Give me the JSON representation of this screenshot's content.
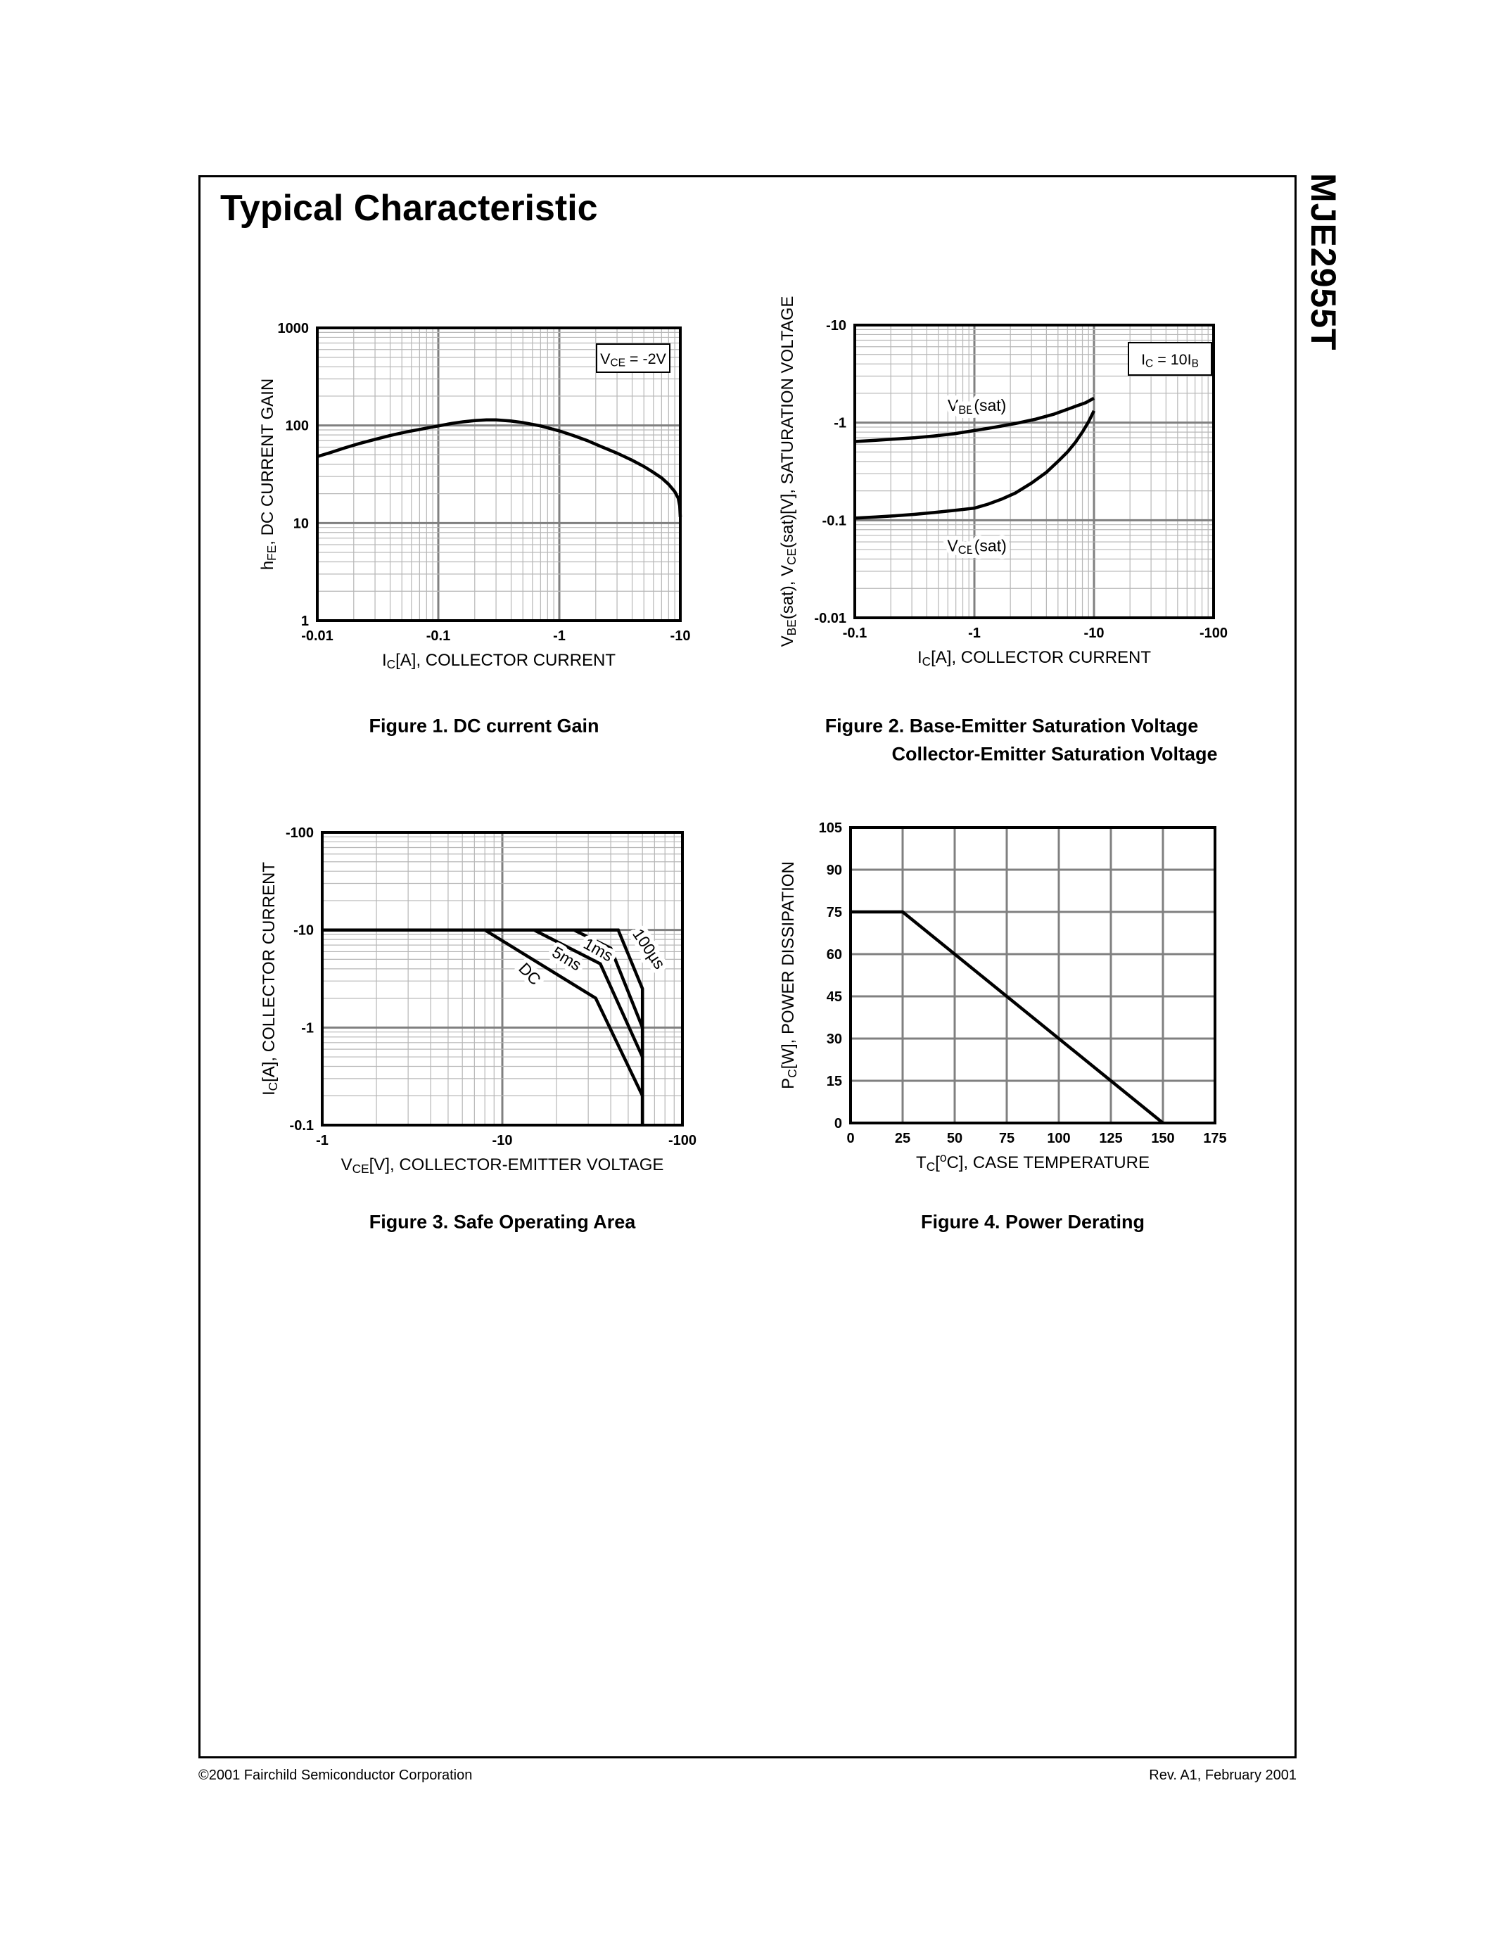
{
  "page": {
    "title": "Typical Characteristic",
    "side_label": "MJE2955T",
    "footer_left": "©2001 Fairchild Semiconductor Corporation",
    "footer_right": "Rev. A1, February 2001"
  },
  "chart_data": [
    {
      "id": "figure-1",
      "type": "line",
      "caption": "Figure 1. DC current Gain",
      "x_axis": {
        "scale": "log",
        "range": [
          -0.01,
          -10
        ],
        "ticks": [
          {
            "v": -0.01,
            "l": "-0.01"
          },
          {
            "v": -0.1,
            "l": "-0.1"
          },
          {
            "v": -1,
            "l": "-1"
          },
          {
            "v": -10,
            "l": "-10"
          }
        ],
        "title": [
          {
            "t": "I"
          },
          {
            "t": "C",
            "m": "sub"
          },
          {
            "t": "[A], COLLECTOR CURRENT"
          }
        ]
      },
      "y_axis": {
        "scale": "log",
        "range": [
          1,
          1000
        ],
        "ticks": [
          {
            "v": 1000,
            "l": "1000"
          },
          {
            "v": 100,
            "l": "100"
          },
          {
            "v": 10,
            "l": "10"
          },
          {
            "v": 1,
            "l": "1"
          }
        ],
        "title": [
          {
            "t": "h"
          },
          {
            "t": "FE",
            "m": "sub"
          },
          {
            "t": ", DC CURRENT GAIN"
          }
        ]
      },
      "annotations": [
        {
          "box": {
            "x": 848,
            "y": 489,
            "w": 104,
            "h": 40
          },
          "segments": [
            {
              "t": "V"
            },
            {
              "t": "CE",
              "m": "sub"
            },
            {
              "t": " = -2V"
            }
          ]
        }
      ],
      "labels": [],
      "series": [
        {
          "name": "hFE",
          "points": [
            [
              -0.01,
              48
            ],
            [
              -0.013,
              53
            ],
            [
              -0.017,
              59
            ],
            [
              -0.022,
              65
            ],
            [
              -0.03,
              72
            ],
            [
              -0.04,
              79
            ],
            [
              -0.055,
              86
            ],
            [
              -0.07,
              91
            ],
            [
              -0.1,
              99
            ],
            [
              -0.13,
              105
            ],
            [
              -0.16,
              109
            ],
            [
              -0.2,
              112
            ],
            [
              -0.25,
              114
            ],
            [
              -0.3,
              114
            ],
            [
              -0.4,
              111
            ],
            [
              -0.5,
              107
            ],
            [
              -0.7,
              99
            ],
            [
              -1,
              88
            ],
            [
              -1.3,
              79
            ],
            [
              -1.7,
              70
            ],
            [
              -2.2,
              61
            ],
            [
              -3,
              52
            ],
            [
              -4,
              44
            ],
            [
              -5,
              38
            ],
            [
              -6,
              33
            ],
            [
              -7,
              29
            ],
            [
              -8,
              25
            ],
            [
              -9,
              21
            ],
            [
              -9.6,
              18
            ],
            [
              -9.9,
              15
            ],
            [
              -10,
              11.5
            ]
          ]
        }
      ]
    },
    {
      "id": "figure-2",
      "type": "line",
      "caption": "Figure 2. Base-Emitter Saturation Voltage",
      "caption2": "Collector-Emitter Saturation Voltage",
      "x_axis": {
        "scale": "log",
        "range": [
          -0.1,
          -100
        ],
        "ticks": [
          {
            "v": -0.1,
            "l": "-0.1"
          },
          {
            "v": -1,
            "l": "-1"
          },
          {
            "v": -10,
            "l": "-10"
          },
          {
            "v": -100,
            "l": "-100"
          }
        ],
        "title": [
          {
            "t": "I"
          },
          {
            "t": "C",
            "m": "sub"
          },
          {
            "t": "[A], COLLECTOR CURRENT"
          }
        ]
      },
      "y_axis": {
        "scale": "log",
        "range": [
          -0.01,
          -10
        ],
        "ticks": [
          {
            "v": -10,
            "l": "-10"
          },
          {
            "v": -1,
            "l": "-1"
          },
          {
            "v": -0.1,
            "l": "-0.1"
          },
          {
            "v": -0.01,
            "l": "-0.01"
          }
        ],
        "title": [
          {
            "t": "V"
          },
          {
            "t": "BE",
            "m": "sub"
          },
          {
            "t": "(sat), V"
          },
          {
            "t": "CE",
            "m": "sub"
          },
          {
            "t": "(sat)[V], SATURATION VOLTAGE"
          }
        ]
      },
      "annotations": [
        {
          "box": {
            "x": 1604,
            "y": 487,
            "w": 118,
            "h": 46
          },
          "segments": [
            {
              "t": "I"
            },
            {
              "t": "C",
              "m": "sub"
            },
            {
              "t": " = 10I"
            },
            {
              "t": "B",
              "m": "sub"
            }
          ]
        }
      ],
      "labels": [
        {
          "segments": [
            {
              "t": "V"
            },
            {
              "t": "BE",
              "m": "sub"
            },
            {
              "t": "(sat)"
            }
          ],
          "x": -1.05,
          "y": -1.5,
          "rotate": 0
        },
        {
          "segments": [
            {
              "t": "V"
            },
            {
              "t": "CE",
              "m": "sub"
            },
            {
              "t": "(sat)"
            }
          ],
          "x": -1.05,
          "y": -0.055,
          "rotate": 0
        }
      ],
      "series": [
        {
          "name": "VBE(sat)",
          "points": [
            [
              -0.1,
              -0.64
            ],
            [
              -0.15,
              -0.66
            ],
            [
              -0.22,
              -0.68
            ],
            [
              -0.32,
              -0.7
            ],
            [
              -0.46,
              -0.73
            ],
            [
              -0.68,
              -0.77
            ],
            [
              -1,
              -0.83
            ],
            [
              -1.5,
              -0.9
            ],
            [
              -2.2,
              -0.98
            ],
            [
              -3.2,
              -1.08
            ],
            [
              -4.6,
              -1.22
            ],
            [
              -6.8,
              -1.45
            ],
            [
              -8.5,
              -1.6
            ],
            [
              -10,
              -1.78
            ]
          ]
        },
        {
          "name": "VCE(sat)",
          "points": [
            [
              -0.1,
              -0.105
            ],
            [
              -0.15,
              -0.108
            ],
            [
              -0.22,
              -0.111
            ],
            [
              -0.32,
              -0.115
            ],
            [
              -0.46,
              -0.12
            ],
            [
              -0.68,
              -0.126
            ],
            [
              -1,
              -0.133
            ],
            [
              -1.3,
              -0.146
            ],
            [
              -1.7,
              -0.165
            ],
            [
              -2.2,
              -0.19
            ],
            [
              -3,
              -0.24
            ],
            [
              -4,
              -0.31
            ],
            [
              -5,
              -0.4
            ],
            [
              -6,
              -0.5
            ],
            [
              -7,
              -0.63
            ],
            [
              -8,
              -0.8
            ],
            [
              -9,
              -1.02
            ],
            [
              -10,
              -1.32
            ]
          ]
        }
      ]
    },
    {
      "id": "figure-3",
      "type": "line",
      "caption": "Figure 3. Safe Operating Area",
      "x_axis": {
        "scale": "log",
        "range": [
          -1,
          -100
        ],
        "ticks": [
          {
            "v": -1,
            "l": "-1"
          },
          {
            "v": -10,
            "l": "-10"
          },
          {
            "v": -100,
            "l": "-100"
          }
        ],
        "title": [
          {
            "t": "V"
          },
          {
            "t": "CE",
            "m": "sub"
          },
          {
            "t": "[V], COLLECTOR-EMITTER VOLTAGE"
          }
        ]
      },
      "y_axis": {
        "scale": "log",
        "range": [
          -0.1,
          -100
        ],
        "ticks": [
          {
            "v": -100,
            "l": "-100"
          },
          {
            "v": -10,
            "l": "-10"
          },
          {
            "v": -1,
            "l": "-1"
          },
          {
            "v": -0.1,
            "l": "-0.1"
          }
        ],
        "title": [
          {
            "t": "I"
          },
          {
            "t": "C",
            "m": "sub"
          },
          {
            "t": "[A], COLLECTOR CURRENT"
          }
        ]
      },
      "annotations": [],
      "labels": [
        {
          "segments": [
            {
              "t": "DC"
            }
          ],
          "x": -13.5,
          "y": -3.7,
          "rotate": 46
        },
        {
          "segments": [
            {
              "t": "5ms"
            }
          ],
          "x": -22,
          "y": -5.2,
          "rotate": 31
        },
        {
          "segments": [
            {
              "t": "1ms"
            }
          ],
          "x": -33,
          "y": -6.4,
          "rotate": 29
        },
        {
          "segments": [
            {
              "t": "100µs"
            }
          ],
          "x": -61.5,
          "y": -6.8,
          "rotate": 56
        }
      ],
      "series": [
        {
          "name": "DC",
          "points": [
            [
              -1,
              -10
            ],
            [
              -8,
              -10
            ],
            [
              -33,
              -2
            ],
            [
              -60,
              -0.2
            ],
            [
              -60,
              -0.1
            ]
          ]
        },
        {
          "name": "5ms",
          "points": [
            [
              -1,
              -10
            ],
            [
              -15,
              -10
            ],
            [
              -35,
              -4.5
            ],
            [
              -60,
              -0.5
            ],
            [
              -60,
              -0.1
            ]
          ]
        },
        {
          "name": "1ms",
          "points": [
            [
              -1,
              -10
            ],
            [
              -25,
              -10
            ],
            [
              -40,
              -6.5
            ],
            [
              -60,
              -1
            ],
            [
              -60,
              -0.1
            ]
          ]
        },
        {
          "name": "100µs",
          "points": [
            [
              -1,
              -10
            ],
            [
              -44,
              -10
            ],
            [
              -60,
              -2.5
            ],
            [
              -60,
              -0.1
            ]
          ]
        }
      ]
    },
    {
      "id": "figure-4",
      "type": "line",
      "caption": "Figure 4. Power Derating",
      "x_axis": {
        "scale": "linear",
        "range": [
          0,
          175
        ],
        "tick_step": 25,
        "ticks": [
          {
            "v": 0,
            "l": "0"
          },
          {
            "v": 25,
            "l": "25"
          },
          {
            "v": 50,
            "l": "50"
          },
          {
            "v": 75,
            "l": "75"
          },
          {
            "v": 100,
            "l": "100"
          },
          {
            "v": 125,
            "l": "125"
          },
          {
            "v": 150,
            "l": "150"
          },
          {
            "v": 175,
            "l": "175"
          }
        ],
        "title": [
          {
            "t": "T"
          },
          {
            "t": "C",
            "m": "sub"
          },
          {
            "t": "["
          },
          {
            "t": "o",
            "m": "sup"
          },
          {
            "t": "C], CASE TEMPERATURE"
          }
        ]
      },
      "y_axis": {
        "scale": "linear",
        "range": [
          0,
          105
        ],
        "tick_step": 15,
        "ticks": [
          {
            "v": 105,
            "l": "105"
          },
          {
            "v": 90,
            "l": "90"
          },
          {
            "v": 75,
            "l": "75"
          },
          {
            "v": 60,
            "l": "60"
          },
          {
            "v": 45,
            "l": "45"
          },
          {
            "v": 30,
            "l": "30"
          },
          {
            "v": 15,
            "l": "15"
          },
          {
            "v": 0,
            "l": "0"
          }
        ],
        "title": [
          {
            "t": "P"
          },
          {
            "t": "C",
            "m": "sub"
          },
          {
            "t": "[W], POWER DISSIPATION"
          }
        ]
      },
      "annotations": [],
      "labels": [],
      "series": [
        {
          "name": "power-derating",
          "points": [
            [
              0,
              75
            ],
            [
              25,
              75
            ],
            [
              150,
              0
            ]
          ]
        }
      ]
    }
  ]
}
